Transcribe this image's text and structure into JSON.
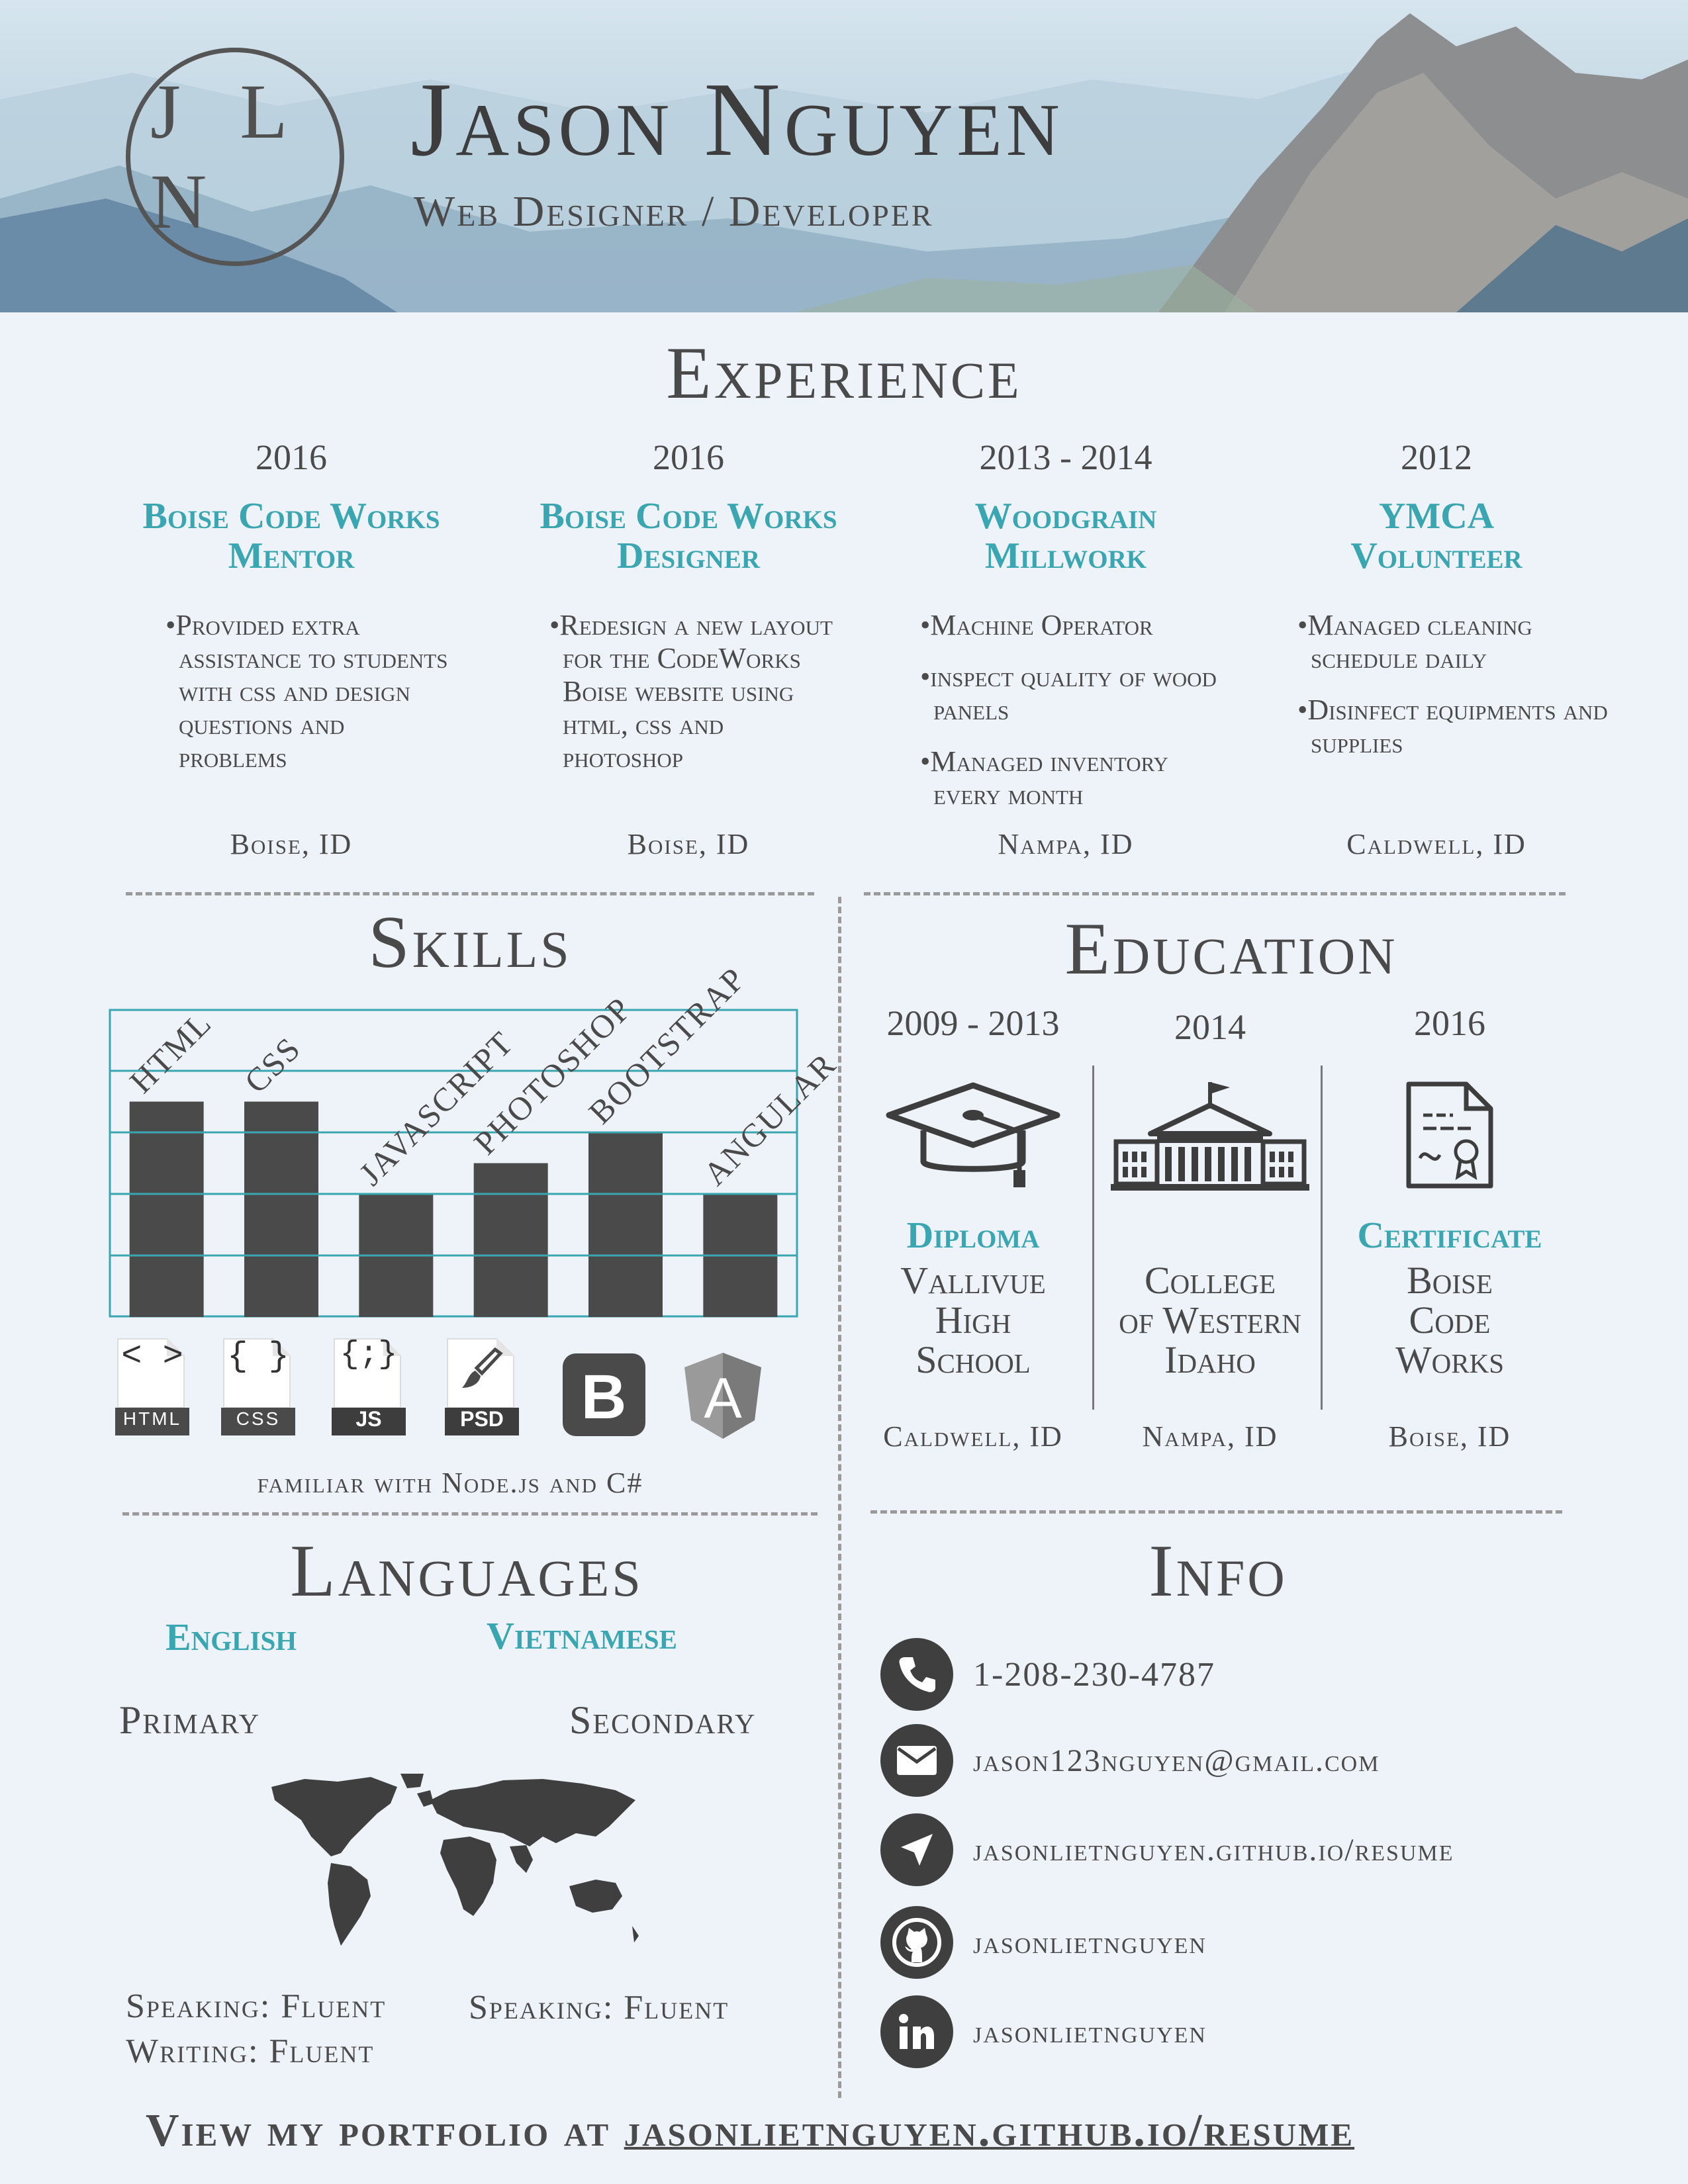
{
  "header": {
    "monogram": "J L N",
    "name": "Jason Nguyen",
    "subtitle": "Web Designer / Developer"
  },
  "experience": {
    "title": "Experience",
    "jobs": [
      {
        "year": "2016",
        "title_line1": "Boise Code Works",
        "title_line2": "Mentor",
        "bullets": [
          "•Provided extra assistance to students with css and design questions and problems"
        ],
        "location": "Boise, ID"
      },
      {
        "year": "2016",
        "title_line1": "Boise Code Works",
        "title_line2": "Designer",
        "bullets": [
          "•Redesign a new layout for the CodeWorks Boise website using html, css and photoshop"
        ],
        "location": "Boise, ID"
      },
      {
        "year": "2013 - 2014",
        "title_line1": "Woodgrain",
        "title_line2": "Millwork",
        "bullets": [
          "•Machine Operator",
          "•inspect quality of wood panels",
          "•Managed inventory every month"
        ],
        "location": "Nampa, ID"
      },
      {
        "year": "2012",
        "title_line1": "YMCA",
        "title_line2": "Volunteer",
        "bullets": [
          "•Managed cleaning schedule daily",
          "•Disinfect equipments and supplies"
        ],
        "location": "Caldwell, ID"
      }
    ]
  },
  "skills": {
    "title": "Skills",
    "icons": [
      {
        "label": "HTML",
        "glyph": "< >",
        "icon": "html-file-icon"
      },
      {
        "label": "CSS",
        "glyph": "{ }",
        "icon": "css-file-icon"
      },
      {
        "label": "JS",
        "glyph": "{;}",
        "icon": "js-file-icon"
      },
      {
        "label": "PSD",
        "glyph": "",
        "icon": "psd-file-icon"
      },
      {
        "label": "",
        "glyph": "B",
        "icon": "bootstrap-icon"
      },
      {
        "label": "",
        "glyph": "A",
        "icon": "angular-icon"
      }
    ],
    "familiar": "familiar with Node.js and C#"
  },
  "chart_data": {
    "type": "bar",
    "categories": [
      "HTML",
      "CSS",
      "JavaScript",
      "Photoshop",
      "Bootstrap",
      "Angular"
    ],
    "values": [
      3.5,
      3.5,
      2,
      2.5,
      3,
      2
    ],
    "ylim": [
      0,
      5
    ],
    "grid": true,
    "bar_color": "#4a4a4a",
    "grid_color": "#3aa6b1"
  },
  "education": {
    "title": "Education",
    "entries": [
      {
        "year": "2009 - 2013",
        "degree": "Diploma",
        "school_lines": [
          "Vallivue",
          "High",
          "School"
        ],
        "location": "Caldwell, ID",
        "icon": "graduation-cap-icon"
      },
      {
        "year": "2014",
        "degree": "",
        "school_lines": [
          "College",
          "of Western",
          "Idaho"
        ],
        "location": "Nampa, ID",
        "icon": "college-building-icon"
      },
      {
        "year": "2016",
        "degree": "Certificate",
        "school_lines": [
          "Boise",
          "Code",
          "Works"
        ],
        "location": "Boise, ID",
        "icon": "certificate-icon"
      }
    ]
  },
  "languages": {
    "title": "Languages",
    "items": [
      {
        "name": "English",
        "level": "Primary",
        "fluency": [
          "Speaking: Fluent",
          "Writing: Fluent"
        ]
      },
      {
        "name": "Vietnamese",
        "level": "Secondary",
        "fluency": [
          "Speaking: Fluent"
        ]
      }
    ]
  },
  "info": {
    "title": "Info",
    "items": [
      {
        "icon": "phone-icon",
        "text": "1-208-230-4787"
      },
      {
        "icon": "email-icon",
        "text": "jason123nguyen@gmail.com"
      },
      {
        "icon": "link-icon",
        "text": "jasonlietnguyen.github.io/resume"
      },
      {
        "icon": "github-icon",
        "text": "jasonlietnguyen"
      },
      {
        "icon": "linkedin-icon",
        "text": "jasonlietnguyen"
      }
    ]
  },
  "footer": {
    "prefix": "View my portfolio at",
    "link": "jasonlietnguyen.github.io/resume"
  },
  "colors": {
    "accent": "#3aa6b1",
    "text": "#4a4a4a",
    "background": "#eef3fa"
  }
}
